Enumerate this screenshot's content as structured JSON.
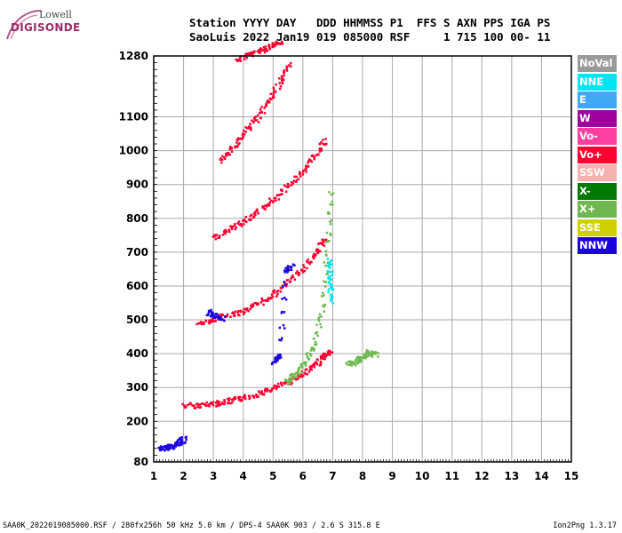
{
  "logo": {
    "line1": "Lowell",
    "line2": "DIGISONDE"
  },
  "header": {
    "line1": "Station YYYY DAY   DDD HHMMSS P1  FFS S AXN PPS IGA PS",
    "line2": "SaoLuis 2022 Jan19 019 085000 RSF     1 715 100 00- 11"
  },
  "legend": [
    {
      "label": "NoVal",
      "color": "#9a9a9a"
    },
    {
      "label": "NNE",
      "color": "#00e5f0"
    },
    {
      "label": "E",
      "color": "#3fa9f5"
    },
    {
      "label": "W",
      "color": "#a0009f"
    },
    {
      "label": "Vo-",
      "color": "#ff3fa0"
    },
    {
      "label": "Vo+",
      "color": "#ff0030"
    },
    {
      "label": "SSW",
      "color": "#f5b0b0"
    },
    {
      "label": "X-",
      "color": "#007a00"
    },
    {
      "label": "X+",
      "color": "#6fb84f"
    },
    {
      "label": "SSE",
      "color": "#d0d000"
    },
    {
      "label": "NNW",
      "color": "#1a00e0"
    }
  ],
  "footer": {
    "left": "SAA0K_2022019085000.RSF / 280fx256h 50 kHz 5.0 km / DPS-4 SAA0K 903 / 2.6 S 315.8 E",
    "right": "Ion2Png 1.3.17"
  },
  "chart_data": {
    "type": "scatter",
    "xlim": [
      1,
      15
    ],
    "ylim": [
      80,
      1280
    ],
    "x_ticks": [
      "1",
      "2",
      "3",
      "4",
      "5",
      "6",
      "7",
      "8",
      "9",
      "10",
      "11",
      "12",
      "13",
      "14",
      "15"
    ],
    "y_ticks": [
      "80",
      "200",
      "300",
      "400",
      "500",
      "600",
      "700",
      "800",
      "900",
      "1000",
      "1100",
      "1280"
    ],
    "grid": true,
    "legend_position": "right",
    "series": [
      {
        "name": "Vo+",
        "color": "#ff0030",
        "traces": [
          {
            "x": [
              2.0,
              2.5,
              3.0,
              3.5,
              4.0,
              4.5,
              5.0,
              5.5,
              6.0,
              6.4,
              6.7,
              6.9
            ],
            "y": [
              250,
              250,
              255,
              262,
              272,
              285,
              300,
              320,
              345,
              370,
              395,
              410
            ]
          },
          {
            "x": [
              2.5,
              3.0,
              3.5,
              4.0,
              4.5,
              5.0,
              5.5,
              6.0,
              6.4,
              6.7
            ],
            "y": [
              490,
              505,
              515,
              530,
              550,
              580,
              615,
              655,
              700,
              740
            ]
          },
          {
            "x": [
              3.0,
              3.5,
              4.0,
              4.5,
              5.0,
              5.5,
              6.0,
              6.4,
              6.7
            ],
            "y": [
              745,
              770,
              795,
              825,
              860,
              900,
              945,
              990,
              1030
            ]
          },
          {
            "x": [
              3.2,
              3.6,
              4.0,
              4.4,
              4.8,
              5.2,
              5.5
            ],
            "y": [
              975,
              1010,
              1050,
              1095,
              1145,
              1200,
              1260
            ]
          },
          {
            "x": [
              3.8,
              4.2,
              4.6,
              4.9,
              5.2
            ],
            "y": [
              1270,
              1290,
              1300,
              1310,
              1320
            ]
          }
        ]
      },
      {
        "name": "X+",
        "color": "#6fb84f",
        "traces": [
          {
            "x": [
              5.4,
              5.7,
              6.0,
              6.3,
              6.6,
              6.8,
              6.9
            ],
            "y": [
              320,
              340,
              370,
              420,
              520,
              700,
              880
            ]
          },
          {
            "x": [
              7.5,
              7.8,
              8.0,
              8.2,
              8.4
            ],
            "y": [
              370,
              380,
              395,
              405,
              400
            ]
          }
        ]
      },
      {
        "name": "NNW",
        "color": "#1a00e0",
        "traces": [
          {
            "x": [
              1.2,
              1.4,
              1.6,
              1.8,
              2.0
            ],
            "y": [
              120,
              125,
              130,
              140,
              150
            ]
          },
          {
            "x": [
              2.8,
              3.0,
              3.3
            ],
            "y": [
              525,
              515,
              508
            ]
          },
          {
            "x": [
              5.0,
              5.2,
              5.4,
              5.6
            ],
            "y": [
              380,
              400,
              650,
              660
            ]
          }
        ]
      },
      {
        "name": "NNE",
        "color": "#00e5f0",
        "traces": [
          {
            "x": [
              6.9,
              6.9,
              6.85
            ],
            "y": [
              560,
              620,
              680
            ]
          }
        ]
      }
    ]
  }
}
